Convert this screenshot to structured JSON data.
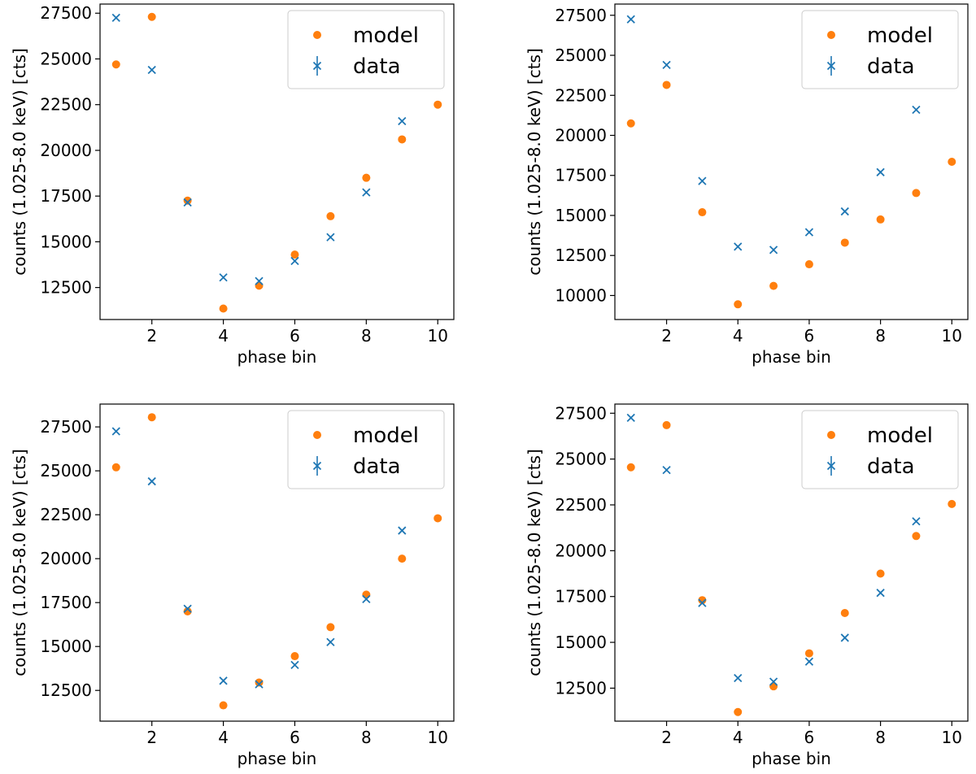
{
  "chart_data": [
    {
      "type": "scatter",
      "panel": "top-left",
      "xlabel": "phase bin",
      "ylabel": "counts (1.025-8.0 keV) [cts]",
      "xlim": [
        0.55,
        10.45
      ],
      "ylim": [
        10750,
        28000
      ],
      "xticks": [
        2,
        4,
        6,
        8,
        10
      ],
      "yticks": [
        12500,
        15000,
        17500,
        20000,
        22500,
        25000,
        27500
      ],
      "legend_position": "top-right",
      "series": [
        {
          "name": "model",
          "marker": "circle",
          "color": "#ff7f0e",
          "x": [
            1,
            2,
            3,
            4,
            5,
            6,
            7,
            8,
            9,
            10
          ],
          "values": [
            24700,
            27300,
            17250,
            11350,
            12600,
            14300,
            16400,
            18500,
            20600,
            22500
          ]
        },
        {
          "name": "data",
          "marker": "x",
          "color": "#1f77b4",
          "x": [
            1,
            2,
            3,
            4,
            5,
            6,
            7,
            8,
            9
          ],
          "values": [
            27250,
            24400,
            17150,
            13050,
            12850,
            13950,
            15250,
            17700,
            21600
          ]
        }
      ]
    },
    {
      "type": "scatter",
      "panel": "top-right",
      "xlabel": "phase bin",
      "ylabel": "counts (1.025-8.0 keV) [cts]",
      "xlim": [
        0.55,
        10.45
      ],
      "ylim": [
        8500,
        28200
      ],
      "xticks": [
        2,
        4,
        6,
        8,
        10
      ],
      "yticks": [
        10000,
        12500,
        15000,
        17500,
        20000,
        22500,
        25000,
        27500
      ],
      "legend_position": "top-right",
      "series": [
        {
          "name": "model",
          "marker": "circle",
          "color": "#ff7f0e",
          "x": [
            1,
            2,
            3,
            4,
            5,
            6,
            7,
            8,
            9,
            10
          ],
          "values": [
            20750,
            23150,
            15200,
            9450,
            10600,
            11950,
            13300,
            14750,
            16400,
            18350
          ]
        },
        {
          "name": "data",
          "marker": "x",
          "color": "#1f77b4",
          "x": [
            1,
            2,
            3,
            4,
            5,
            6,
            7,
            8,
            9
          ],
          "values": [
            27250,
            24400,
            17150,
            13050,
            12850,
            13950,
            15250,
            17700,
            21600
          ]
        }
      ]
    },
    {
      "type": "scatter",
      "panel": "bottom-left",
      "xlabel": "phase bin",
      "ylabel": "counts (1.025-8.0 keV) [cts]",
      "xlim": [
        0.55,
        10.45
      ],
      "ylim": [
        10750,
        28800
      ],
      "xticks": [
        2,
        4,
        6,
        8,
        10
      ],
      "yticks": [
        12500,
        15000,
        17500,
        20000,
        22500,
        25000,
        27500
      ],
      "legend_position": "top-right",
      "series": [
        {
          "name": "model",
          "marker": "circle",
          "color": "#ff7f0e",
          "x": [
            1,
            2,
            3,
            4,
            5,
            6,
            7,
            8,
            9,
            10
          ],
          "values": [
            25200,
            28050,
            17000,
            11650,
            12950,
            14450,
            16100,
            17950,
            20000,
            22300
          ]
        },
        {
          "name": "data",
          "marker": "x",
          "color": "#1f77b4",
          "x": [
            1,
            2,
            3,
            4,
            5,
            6,
            7,
            8,
            9
          ],
          "values": [
            27250,
            24400,
            17150,
            13050,
            12850,
            13950,
            15250,
            17700,
            21600
          ]
        }
      ]
    },
    {
      "type": "scatter",
      "panel": "bottom-right",
      "xlabel": "phase bin",
      "ylabel": "counts (1.025-8.0 keV) [cts]",
      "xlim": [
        0.55,
        10.45
      ],
      "ylim": [
        10700,
        28000
      ],
      "xticks": [
        2,
        4,
        6,
        8,
        10
      ],
      "yticks": [
        12500,
        15000,
        17500,
        20000,
        22500,
        25000,
        27500
      ],
      "legend_position": "top-right",
      "series": [
        {
          "name": "model",
          "marker": "circle",
          "color": "#ff7f0e",
          "x": [
            1,
            2,
            3,
            4,
            5,
            6,
            7,
            8,
            9,
            10
          ],
          "values": [
            24550,
            26850,
            17300,
            11200,
            12600,
            14400,
            16600,
            18750,
            20800,
            22550
          ]
        },
        {
          "name": "data",
          "marker": "x",
          "color": "#1f77b4",
          "x": [
            1,
            2,
            3,
            4,
            5,
            6,
            7,
            8,
            9
          ],
          "values": [
            27250,
            24400,
            17150,
            13050,
            12850,
            13950,
            15250,
            17700,
            21600
          ]
        }
      ]
    }
  ]
}
